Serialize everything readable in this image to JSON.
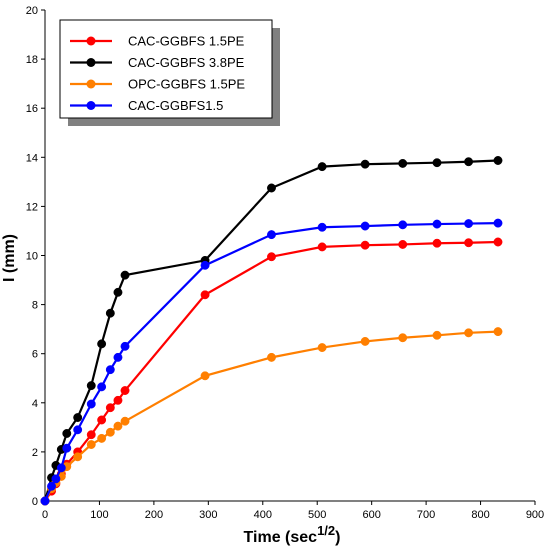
{
  "chart_data": {
    "type": "line",
    "xlabel": "Time (sec",
    "xlabel_sup": "1/2",
    "xlabel_suffix": ")",
    "ylabel": "I (mm)",
    "xlim": [
      0,
      900
    ],
    "ylim": [
      0,
      20
    ],
    "xticks": [
      0,
      100,
      200,
      300,
      400,
      500,
      600,
      700,
      800,
      900
    ],
    "yticks": [
      0,
      2,
      4,
      6,
      8,
      10,
      12,
      14,
      16,
      18,
      20
    ],
    "grid": false,
    "legend_position": "top-left",
    "series": [
      {
        "name": "CAC-GGBFS 1.5PE",
        "color": "#ff0000",
        "x": [
          0,
          12,
          20,
          30,
          40,
          60,
          85,
          104,
          120,
          134,
          147,
          294,
          416,
          509,
          588,
          657,
          720,
          778,
          832
        ],
        "y": [
          0,
          0.4,
          0.7,
          1.1,
          1.5,
          2.0,
          2.7,
          3.3,
          3.8,
          4.1,
          4.5,
          8.4,
          9.95,
          10.35,
          10.42,
          10.45,
          10.5,
          10.52,
          10.55
        ]
      },
      {
        "name": "CAC-GGBFS 3.8PE",
        "color": "#000000",
        "x": [
          0,
          12,
          20,
          30,
          40,
          60,
          85,
          104,
          120,
          134,
          147,
          294,
          416,
          509,
          588,
          657,
          720,
          778,
          832
        ],
        "y": [
          0,
          0.95,
          1.45,
          2.1,
          2.75,
          3.4,
          4.7,
          6.4,
          7.65,
          8.5,
          9.2,
          9.8,
          12.75,
          13.62,
          13.72,
          13.75,
          13.78,
          13.82,
          13.87
        ]
      },
      {
        "name": "OPC-GGBFS 1.5PE",
        "color": "#ff7f00",
        "x": [
          0,
          12,
          20,
          30,
          40,
          60,
          85,
          104,
          120,
          134,
          147,
          294,
          416,
          509,
          588,
          657,
          720,
          778,
          832
        ],
        "y": [
          0,
          0.5,
          0.75,
          1.0,
          1.4,
          1.8,
          2.3,
          2.55,
          2.8,
          3.05,
          3.25,
          5.1,
          5.85,
          6.25,
          6.5,
          6.65,
          6.75,
          6.85,
          6.9
        ]
      },
      {
        "name": "CAC-GGBFS1.5",
        "color": "#0000ff",
        "x": [
          0,
          12,
          20,
          30,
          40,
          60,
          85,
          104,
          120,
          134,
          147,
          294,
          416,
          509,
          588,
          657,
          720,
          778,
          832
        ],
        "y": [
          0,
          0.6,
          0.9,
          1.35,
          2.15,
          2.9,
          3.95,
          4.65,
          5.35,
          5.85,
          6.3,
          9.6,
          10.85,
          11.15,
          11.2,
          11.25,
          11.28,
          11.3,
          11.32
        ]
      }
    ]
  }
}
